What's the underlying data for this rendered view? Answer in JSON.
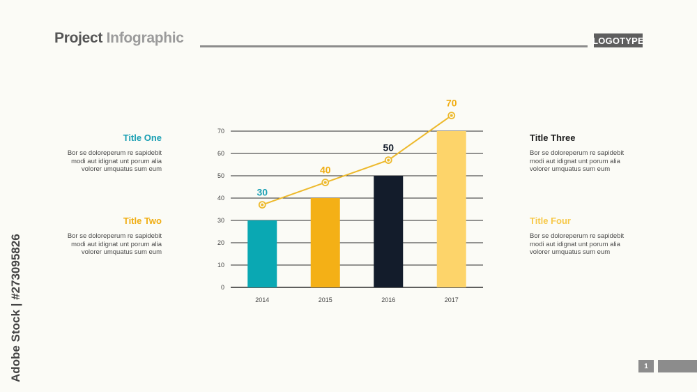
{
  "header": {
    "title_part1": "Project",
    "title_part2": "Infographic",
    "logo": "LOGOTYPE"
  },
  "colors": {
    "teal": "#0aa8b3",
    "orange": "#f4b016",
    "navy": "#131c2b",
    "yellow": "#fdd46a",
    "line": "#edb92c"
  },
  "blocks": [
    {
      "title": "Title One",
      "color": "#1a9fb3",
      "body": [
        "Bor se doloreperum re sapidebit",
        "modi aut idignat unt porum alia",
        "volorer umquatus sum eum"
      ]
    },
    {
      "title": "Title Two",
      "color": "#f0ad12",
      "body": [
        "Bor se doloreperum re sapidebit",
        "modi aut idignat unt porum alia",
        "volorer umquatus sum eum"
      ]
    },
    {
      "title": "Title Three",
      "color": "#1c1c1c",
      "body": [
        "Bor se doloreperum re sapidebit",
        "modi aut idignat unt porum alia",
        "volorer umquatus sum eum"
      ]
    },
    {
      "title": "Title Four",
      "color": "#f7c94a",
      "body": [
        "Bor se doloreperum re sapidebit",
        "modi aut idignat unt porum alia",
        "volorer umquatus sum eum"
      ]
    }
  ],
  "chart_data": {
    "type": "bar",
    "categories": [
      "2014",
      "2015",
      "2016",
      "2017"
    ],
    "values": [
      30,
      40,
      50,
      70
    ],
    "bar_colors": [
      "#0aa8b3",
      "#f4b016",
      "#131c2b",
      "#fdd46a"
    ],
    "data_labels": [
      "30",
      "40",
      "50",
      "70"
    ],
    "label_colors": [
      "#1a9fb3",
      "#f0ad12",
      "#131c2b",
      "#f0ad12"
    ],
    "line_series": [
      37,
      47,
      57,
      77
    ],
    "ylim": [
      0,
      70
    ],
    "yticks": [
      0,
      10,
      20,
      30,
      40,
      50,
      60,
      70
    ],
    "grid": true,
    "title": "",
    "xlabel": "",
    "ylabel": ""
  },
  "watermark": "Adobe Stock | #273095826",
  "page": "1"
}
